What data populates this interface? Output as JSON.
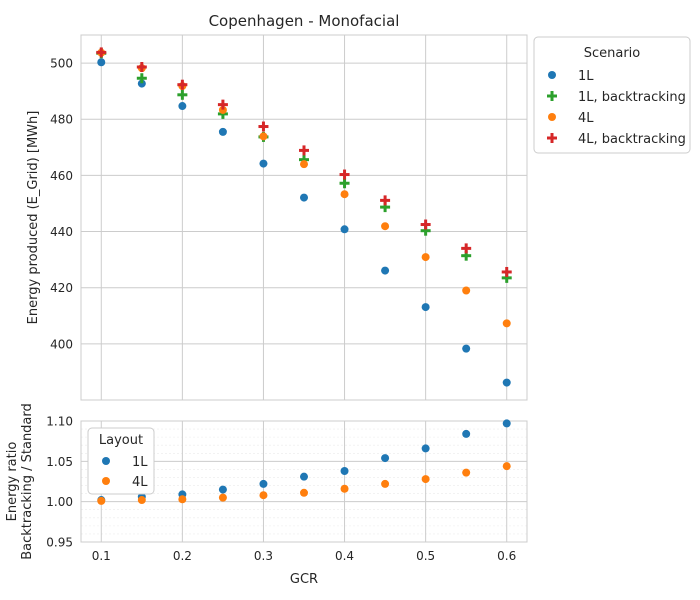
{
  "chart_data": [
    {
      "type": "scatter",
      "title": "Copenhagen - Monofacial",
      "xlabel": "",
      "ylabel": "Energy produced (E_Grid) [MWh]",
      "xlim": [
        0.075,
        0.625
      ],
      "ylim": [
        380,
        510
      ],
      "x_ticks": [
        0.1,
        0.2,
        0.3,
        0.4,
        0.5,
        0.6
      ],
      "y_ticks": [
        400,
        420,
        440,
        460,
        480,
        500
      ],
      "y_tick_labels": [
        "400",
        "420",
        "440",
        "460",
        "480",
        "500"
      ],
      "grid": true,
      "legend": {
        "title": "Scenario",
        "placement": "outside-upper-right"
      },
      "x": [
        0.1,
        0.15,
        0.2,
        0.25,
        0.3,
        0.35,
        0.4,
        0.45,
        0.5,
        0.55,
        0.6
      ],
      "series": [
        {
          "name": "1L",
          "marker": "circle",
          "color": "#1f77b4",
          "values": [
            500.3,
            492.7,
            484.7,
            475.5,
            464.2,
            452.1,
            440.8,
            426.1,
            413.1,
            398.3,
            386.2
          ]
        },
        {
          "name": "1L, backtracking",
          "marker": "plus",
          "color": "#2ca02c",
          "values": [
            503.5,
            494.6,
            488.7,
            481.9,
            473.7,
            465.6,
            457.2,
            448.7,
            440.3,
            431.4,
            423.5
          ]
        },
        {
          "name": "4L",
          "marker": "circle",
          "color": "#ff7f0e",
          "values": [
            503.7,
            498.2,
            491.8,
            483.3,
            473.9,
            464.0,
            453.3,
            441.9,
            430.9,
            419.0,
            407.3
          ]
        },
        {
          "name": "4L, backtracking",
          "marker": "plus",
          "color": "#d62728",
          "values": [
            503.8,
            498.6,
            492.3,
            485.2,
            477.4,
            468.9,
            460.3,
            451.1,
            442.5,
            434.0,
            425.6
          ]
        }
      ]
    },
    {
      "type": "scatter",
      "title": "",
      "xlabel": "GCR",
      "ylabel": "Energy ratio\nBacktracking / Standard",
      "xlim": [
        0.075,
        0.625
      ],
      "ylim": [
        0.95,
        1.1
      ],
      "x_ticks": [
        0.1,
        0.2,
        0.3,
        0.4,
        0.5,
        0.6
      ],
      "x_tick_labels": [
        "0.1",
        "0.2",
        "0.3",
        "0.4",
        "0.5",
        "0.6"
      ],
      "y_ticks": [
        0.95,
        1.0,
        1.05,
        1.1
      ],
      "y_tick_labels": [
        "0.95",
        "1.00",
        "1.05",
        "1.10"
      ],
      "grid": true,
      "minor_grid": true,
      "legend": {
        "title": "Layout",
        "placement": "upper-left"
      },
      "x": [
        0.1,
        0.15,
        0.2,
        0.25,
        0.3,
        0.35,
        0.4,
        0.45,
        0.5,
        0.55,
        0.6
      ],
      "series": [
        {
          "name": "1L",
          "marker": "circle",
          "color": "#1f77b4",
          "values": [
            1.002,
            1.006,
            1.009,
            1.015,
            1.022,
            1.031,
            1.038,
            1.054,
            1.066,
            1.084,
            1.097
          ]
        },
        {
          "name": "4L",
          "marker": "circle",
          "color": "#ff7f0e",
          "values": [
            1.001,
            1.002,
            1.003,
            1.005,
            1.008,
            1.011,
            1.016,
            1.022,
            1.028,
            1.036,
            1.044
          ]
        }
      ]
    }
  ]
}
